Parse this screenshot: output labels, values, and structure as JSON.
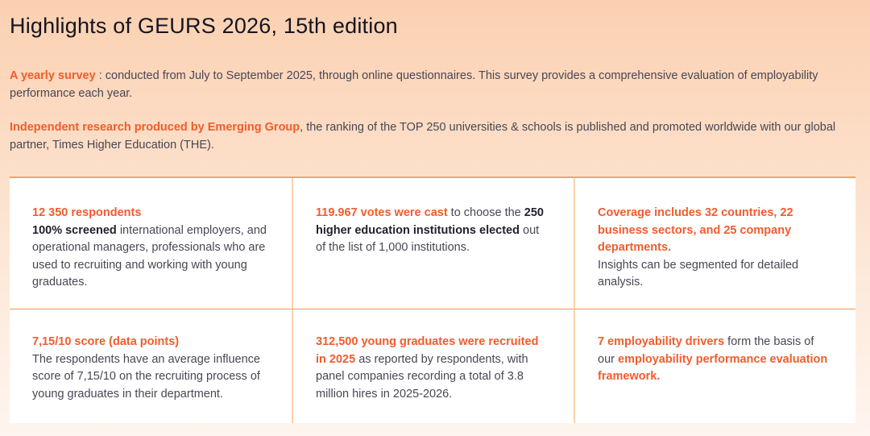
{
  "page": {
    "title": "Highlights of GEURS 2026, 15th edition"
  },
  "intro": {
    "p1": {
      "highlight": "A yearly survey",
      "rest": " : conducted from July to September 2025, through online questionnaires. This survey provides a comprehensive evaluation of employability performance each year."
    },
    "p2": {
      "highlight": "Independent research produced by Emerging Group",
      "rest": ", the ranking of the TOP 250 universities & schools is published and promoted worldwide with our global partner, Times Higher Education (THE)."
    }
  },
  "stats": {
    "respondents": {
      "heading": "12 350 respondents",
      "bold": "100% screened",
      "rest": " international employers, and operational managers, professionals who are used to recruiting and working with young graduates."
    },
    "votes": {
      "lead": "119.967 votes were cast",
      "mid": " to choose the ",
      "bold": "250 higher education institutions elected",
      "rest": " out of the list of 1,000 institutions."
    },
    "coverage": {
      "heading": "Coverage includes 32 countries, 22 business sectors, and 25 company departments.",
      "rest": "Insights can be segmented for detailed analysis."
    },
    "score": {
      "heading": "7,15/10 score (data points)",
      "rest": "The respondents have an average influence score of 7,15/10 on the recruiting process of young graduates in their department."
    },
    "recruited": {
      "lead": "312,500 young graduates were recruited in 2025",
      "rest": " as reported by respondents, with panel companies recording a total of 3.8 million hires in 2025-2026."
    },
    "drivers": {
      "lead": "7 employability drivers",
      "mid": " form the basis of our ",
      "tail": "employability performance evaluation framework."
    }
  },
  "colors": {
    "accent_orange_text": "#f15c2c",
    "table_top_border": "#f7a262",
    "table_row_divider": "#f2954d",
    "table_column_divider": "#fbd3ab",
    "dark_text": "#23212e",
    "body_text": "#4a4653",
    "background_top": "#fbd0b1",
    "background_bottom": "#fef5ef",
    "cell_background": "#ffffff"
  }
}
